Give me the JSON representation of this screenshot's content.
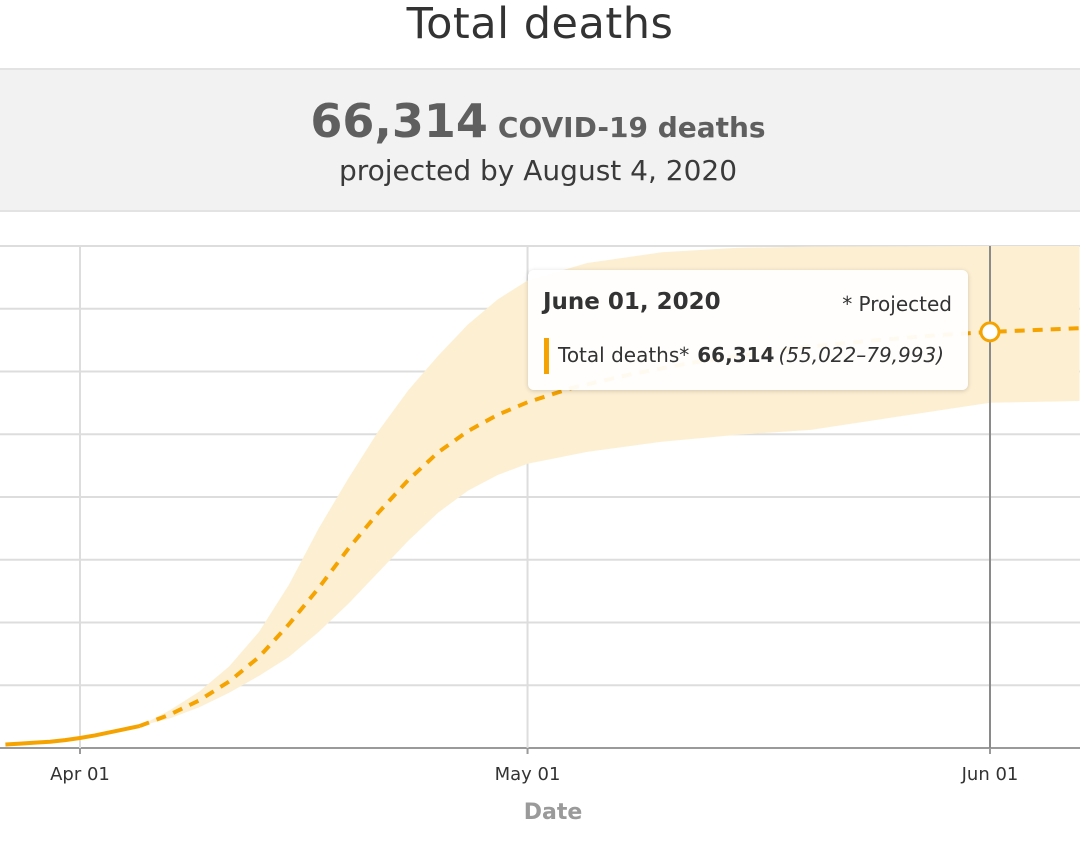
{
  "title": "Total deaths",
  "summary": {
    "value": "66,314",
    "label": "COVID-19 deaths",
    "subtitle": "projected by August 4, 2020"
  },
  "tooltip": {
    "date": "June 01, 2020",
    "projected_note": "* Projected",
    "series_label": "Total deaths*",
    "value": "66,314",
    "range": "(55,022–79,993)"
  },
  "chart_data": {
    "type": "line",
    "xlabel": "Date",
    "x_ticks": [
      {
        "date": "2020-04-01",
        "label": "Apr 01"
      },
      {
        "date": "2020-05-01",
        "label": "May 01"
      },
      {
        "date": "2020-06-01",
        "label": "Jun 01"
      }
    ],
    "xlim": [
      "2020-03-27",
      "2020-06-07"
    ],
    "ylim": [
      0,
      80000
    ],
    "y_gridlines": [
      0,
      10000,
      20000,
      30000,
      40000,
      50000,
      60000,
      70000,
      80000
    ],
    "y_tick_labels_visible": false,
    "grid": true,
    "highlight_date": "2020-06-01",
    "colors": {
      "line": "#f5a300",
      "band": "#fdefd2",
      "grid": "#dddddd",
      "crosshair": "#8a8a8a"
    },
    "series": [
      {
        "name": "Total deaths",
        "style": "solid",
        "points": [
          [
            "2020-03-27",
            550
          ],
          [
            "2020-03-28",
            700
          ],
          [
            "2020-03-29",
            850
          ],
          [
            "2020-03-30",
            1000
          ],
          [
            "2020-03-31",
            1250
          ],
          [
            "2020-04-01",
            1600
          ],
          [
            "2020-04-02",
            2000
          ],
          [
            "2020-04-03",
            2500
          ],
          [
            "2020-04-04",
            3000
          ],
          [
            "2020-04-05",
            3500
          ]
        ]
      },
      {
        "name": "Total deaths*",
        "style": "dashed",
        "points": [
          [
            "2020-04-05",
            3500
          ],
          [
            "2020-04-07",
            5300
          ],
          [
            "2020-04-09",
            7600
          ],
          [
            "2020-04-11",
            10600
          ],
          [
            "2020-04-13",
            14500
          ],
          [
            "2020-04-15",
            19700
          ],
          [
            "2020-04-17",
            25500
          ],
          [
            "2020-04-19",
            31800
          ],
          [
            "2020-04-21",
            37500
          ],
          [
            "2020-04-23",
            42700
          ],
          [
            "2020-04-25",
            47100
          ],
          [
            "2020-04-27",
            50500
          ],
          [
            "2020-04-29",
            53100
          ],
          [
            "2020-05-01",
            55100
          ],
          [
            "2020-05-04",
            57400
          ],
          [
            "2020-05-08",
            59600
          ],
          [
            "2020-05-12",
            61400
          ],
          [
            "2020-05-16",
            62800
          ],
          [
            "2020-05-20",
            64000
          ],
          [
            "2020-05-24",
            64900
          ],
          [
            "2020-05-28",
            65700
          ],
          [
            "2020-06-01",
            66314
          ],
          [
            "2020-06-07",
            66900
          ]
        ]
      }
    ],
    "uncertainty_band": [
      [
        "2020-04-05",
        3500,
        3500
      ],
      [
        "2020-04-07",
        6000,
        4700
      ],
      [
        "2020-04-09",
        9000,
        6500
      ],
      [
        "2020-04-11",
        13000,
        8800
      ],
      [
        "2020-04-13",
        18500,
        11500
      ],
      [
        "2020-04-15",
        26000,
        14500
      ],
      [
        "2020-04-17",
        35000,
        18500
      ],
      [
        "2020-04-19",
        43000,
        23000
      ],
      [
        "2020-04-21",
        50500,
        28000
      ],
      [
        "2020-04-23",
        57000,
        33000
      ],
      [
        "2020-04-25",
        62500,
        37500
      ],
      [
        "2020-04-27",
        67500,
        41000
      ],
      [
        "2020-04-29",
        71500,
        43500
      ],
      [
        "2020-05-01",
        74500,
        45300
      ],
      [
        "2020-05-05",
        77300,
        47200
      ],
      [
        "2020-05-10",
        79000,
        48800
      ],
      [
        "2020-05-15",
        79700,
        49900
      ],
      [
        "2020-05-20",
        79900,
        50700
      ],
      [
        "2020-06-01",
        79993,
        55022
      ],
      [
        "2020-06-07",
        79993,
        55300
      ]
    ]
  }
}
